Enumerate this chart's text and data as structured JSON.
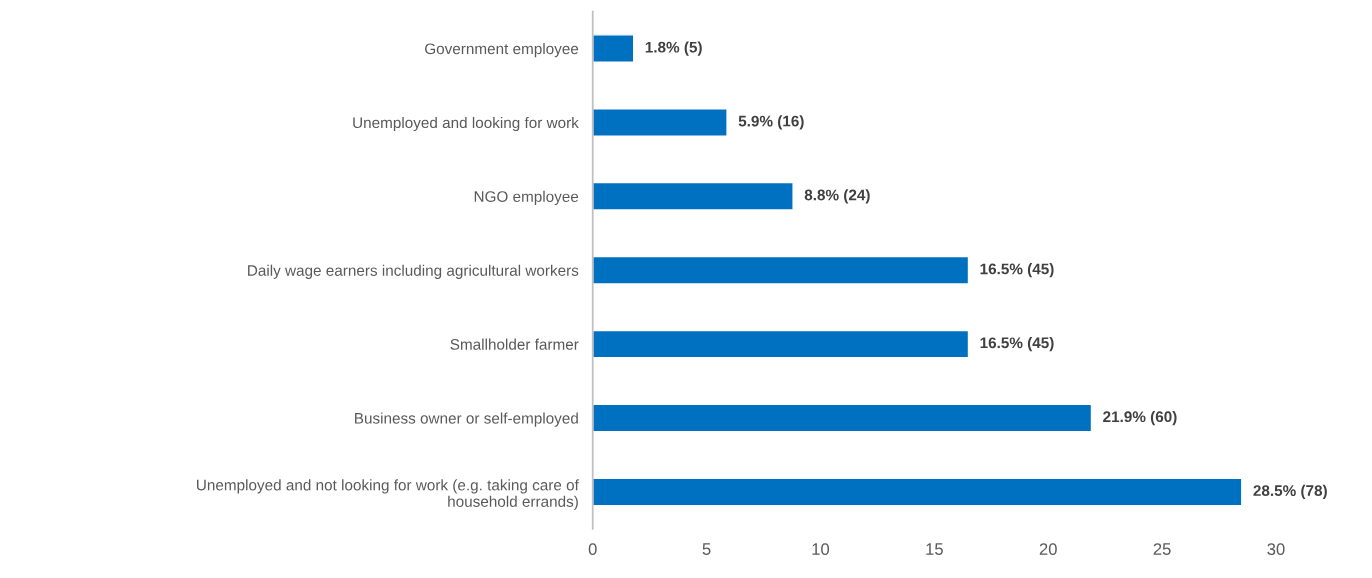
{
  "chart_data": {
    "type": "bar",
    "orientation": "horizontal",
    "categories": [
      "Government employee",
      "Unemployed and looking for work",
      "NGO employee",
      "Daily wage earners including agricultural workers",
      "Smallholder farmer",
      "Business owner or self-employed",
      "Unemployed and not looking for work (e.g. taking care of\nhousehold errands)"
    ],
    "values": [
      1.8,
      5.9,
      8.8,
      16.5,
      16.5,
      21.9,
      28.5
    ],
    "value_labels": [
      "1.8% (5)",
      "5.9% (16)",
      "8.8% (24)",
      "16.5% (45)",
      "16.5% (45)",
      "21.9% (60)",
      "28.5% (78)"
    ],
    "color": "#0070c0",
    "xlim": [
      0,
      30
    ],
    "xticks": [
      0,
      5,
      10,
      15,
      20,
      25,
      30
    ],
    "grid": false,
    "legend": false
  }
}
